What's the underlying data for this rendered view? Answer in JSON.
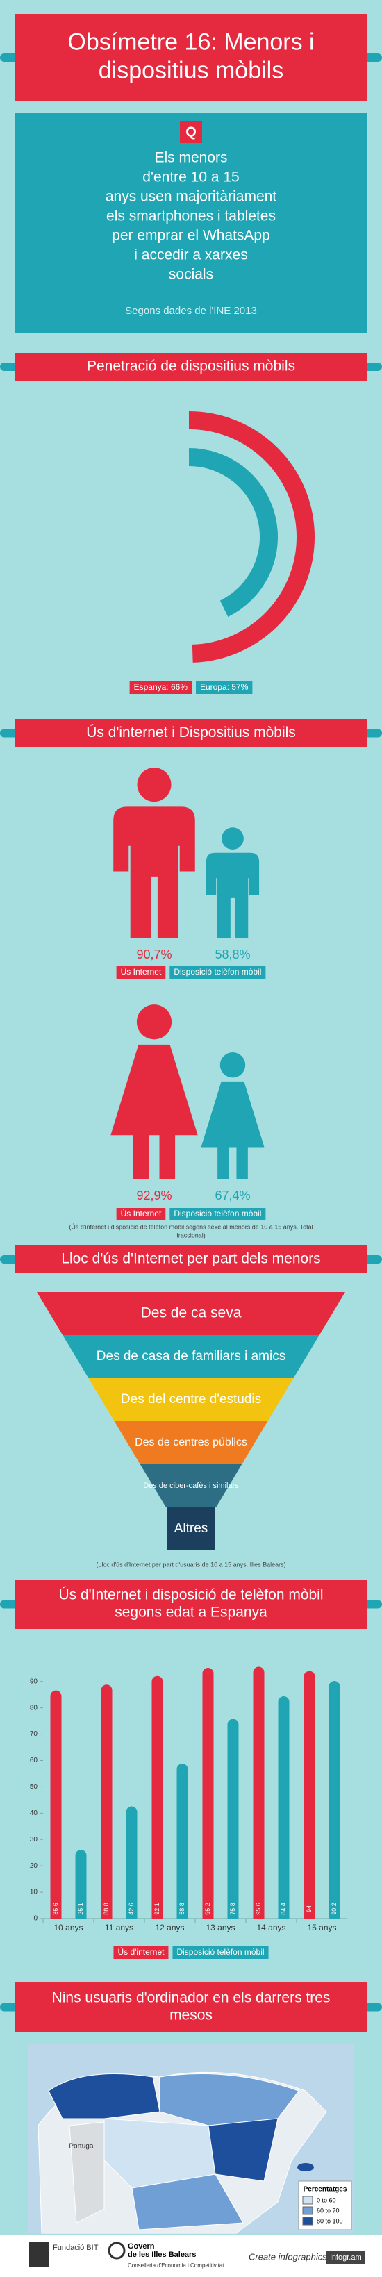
{
  "header": {
    "title": [
      "Obsímetre 16: Menors i",
      "dispositius mòbils"
    ]
  },
  "intro": {
    "icon": "Q",
    "lines": [
      "Els menors",
      "d'entre 10 a 15",
      "anys usen majoritàriament",
      "els smartphones i tabletes",
      "per emprar el WhatsApp",
      "i accedir a xarxes",
      "socials"
    ],
    "source": "Segons dades de l'INE 2013"
  },
  "chart_data": [
    {
      "type": "radial",
      "title": [
        "Penetració de dispositius mòbils"
      ],
      "values": [
        66,
        57
      ],
      "value_labels": [
        "Espanya: 66%",
        "Europa: 57%"
      ],
      "colors": [
        "#e5293f",
        "#1fa5b3"
      ]
    },
    {
      "type": "pictogram",
      "title": [
        "Ús d'internet i Dispositius mòbils"
      ],
      "icons": [
        "man",
        "woman"
      ],
      "series": [
        {
          "name": "Ús Internet",
          "color": "#e5293f",
          "values": [
            90.7,
            92.9
          ],
          "value_labels": [
            "90,7%",
            "92,9%"
          ]
        },
        {
          "name": "Disposició telèfon mòbil",
          "color": "#1fa5b3",
          "values": [
            58.8,
            67.4
          ],
          "value_labels": [
            "58,8%",
            "67,4%"
          ]
        }
      ],
      "note": [
        "(Ús d'internet i disposició de telèfon mòbil segons sexe al menors de 10 a 15 anys. Total",
        "fraccional)"
      ]
    },
    {
      "type": "funnel",
      "title": [
        "Lloc d'ús d'Internet per part dels menors"
      ],
      "categories": [
        "Des de ca seva",
        "Des de casa de familiars i amics",
        "Des del centre d'estudis",
        "Des de centres públics",
        "Des de ciber-cafès i similars",
        "Altres"
      ],
      "colors": [
        "#e5293f",
        "#1fa5b3",
        "#f2c40f",
        "#f07a1f",
        "#2e6e85",
        "#1d3f5e"
      ],
      "note": "(Lloc d'ús d'Internet per part d'usuaris de 10 a 15 anys. Illes Balears)"
    },
    {
      "type": "bar",
      "title": [
        "Ús d'Internet i disposició de telèfon mòbil",
        "segons edat a Espanya"
      ],
      "categories": [
        "10 anys",
        "11 anys",
        "12 anys",
        "13 anys",
        "14 anys",
        "15 anys"
      ],
      "series": [
        {
          "name": "Ús d'internet",
          "color": "#e5293f",
          "values": [
            86.6,
            88.8,
            92.1,
            95.2,
            95.6,
            94
          ]
        },
        {
          "name": "Disposició telèfon mòbil",
          "color": "#1fa5b3",
          "values": [
            26.1,
            42.6,
            58.8,
            75.8,
            84.4,
            90.2
          ]
        }
      ],
      "ylim": [
        0,
        96
      ],
      "yticks": [
        0,
        10,
        20,
        30,
        40,
        50,
        60,
        70,
        80,
        90
      ]
    }
  ],
  "map": {
    "title": [
      "Nins usuaris d'ordinador en els darrers tres",
      "mesos"
    ],
    "place": "Portugal",
    "legend_title": "Percentatges",
    "legend": [
      "0 to 60",
      "60 to 70",
      "80 to 100"
    ],
    "legend_colors": [
      "#cfe3f3",
      "#6f9fd4",
      "#1e4f9c"
    ]
  },
  "footer": {
    "left": "Fundació BIT",
    "center": [
      "Govern",
      "de les Illes Balears"
    ],
    "center_sub": "Conselleria d'Economia i Competitivitat",
    "right": "Create infographics",
    "brand": "infogr.am"
  }
}
